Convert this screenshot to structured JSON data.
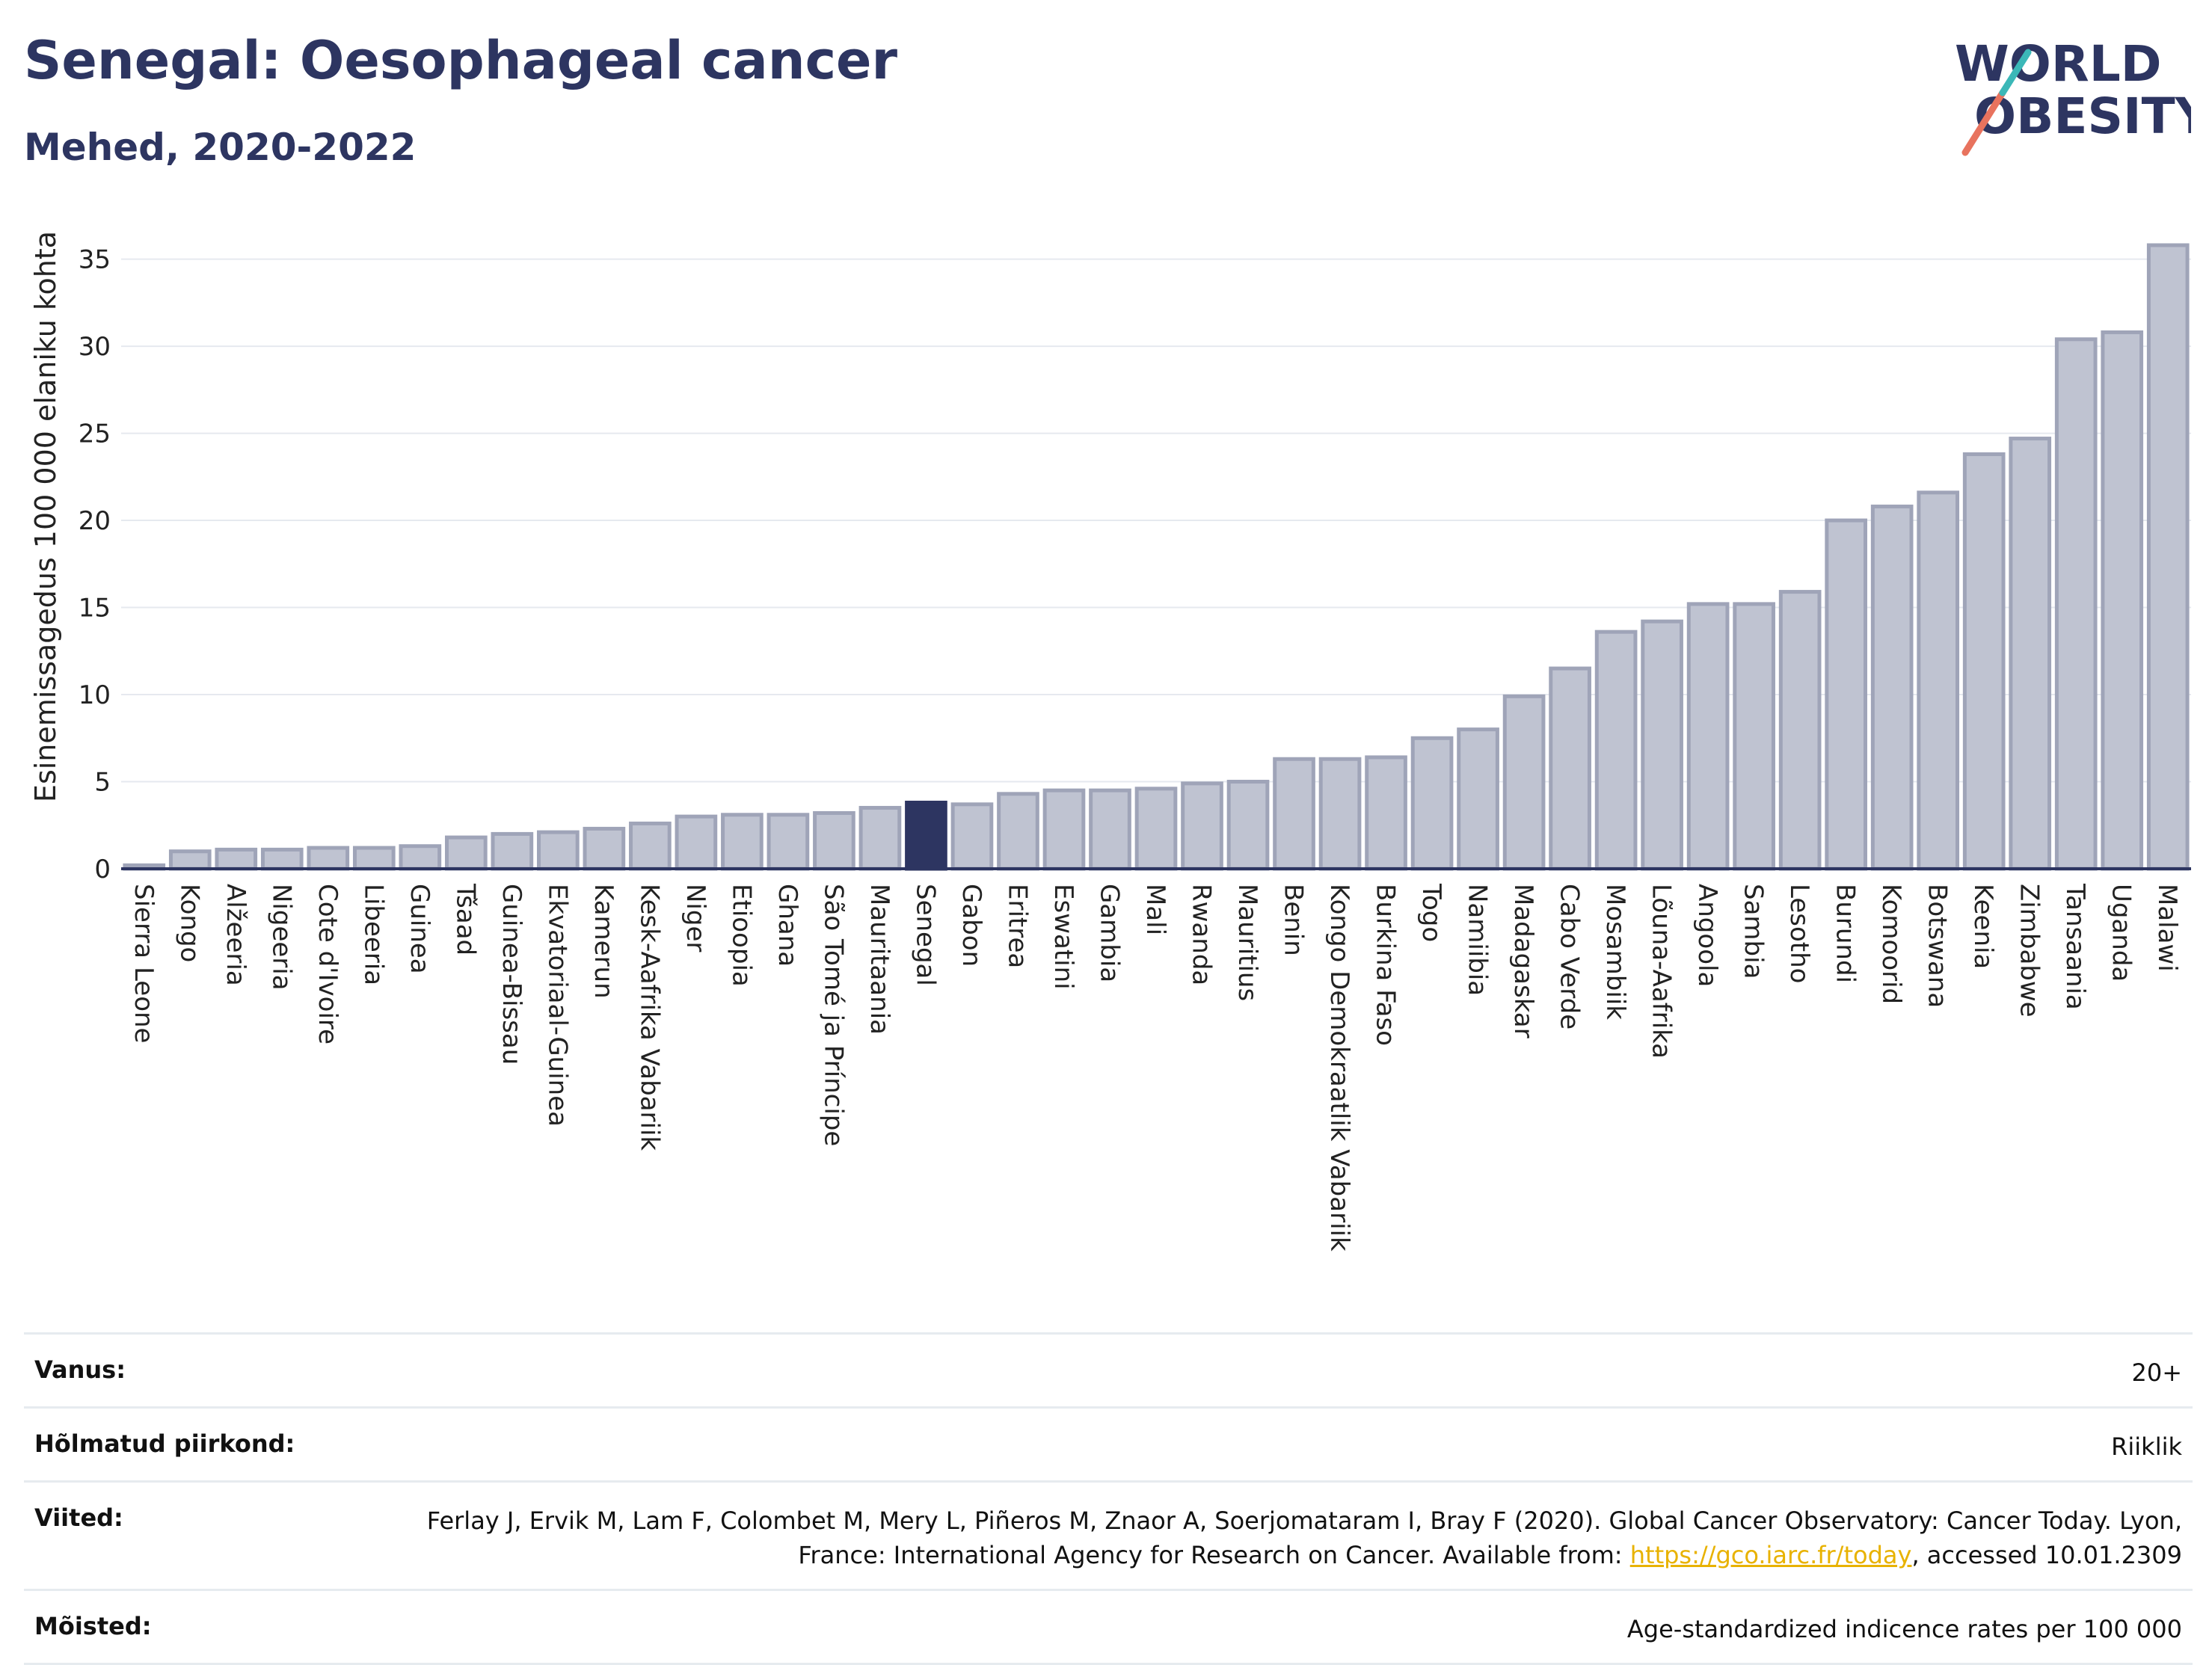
{
  "header": {
    "title": "Senegal: Oesophageal cancer",
    "subtitle": "Mehed, 2020-2022"
  },
  "logo": {
    "line1": "WORLD",
    "line2": "OBESITY",
    "colors": {
      "text": "#2d3561",
      "slash_teal": "#3bb8b8",
      "slash_red": "#e8735e"
    }
  },
  "chart_data": {
    "type": "bar",
    "title": "Senegal: Oesophageal cancer",
    "subtitle": "Mehed, 2020-2022",
    "xlabel": "",
    "ylabel": "Esinemissagedus 100 000 elaniku kohta",
    "ylim": [
      0,
      37
    ],
    "yticks": [
      0,
      5,
      10,
      15,
      20,
      25,
      30,
      35
    ],
    "grid": true,
    "highlight": "Senegal",
    "colors": {
      "bar": "#bfc3d1",
      "bar_edge": "#9fa4b8",
      "highlight": "#2d3561",
      "grid": "#e6e9ef",
      "axis": "#2d3561"
    },
    "categories": [
      "Sierra Leone",
      "Kongo",
      "Alžeeria",
      "Nigeeria",
      "Cote d'Ivoire",
      "Libeeria",
      "Guinea",
      "Tšaad",
      "Guinea-Bissau",
      "Ekvatoriaal-Guinea",
      "Kamerun",
      "Kesk-Aafrika Vabariik",
      "Niger",
      "Etioopia",
      "Ghana",
      "São Tomé ja Príncipe",
      "Mauritaania",
      "Senegal",
      "Gabon",
      "Eritrea",
      "Eswatini",
      "Gambia",
      "Mali",
      "Rwanda",
      "Mauritius",
      "Benin",
      "Kongo Demokraatlik Vabariik",
      "Burkina Faso",
      "Togo",
      "Namiibia",
      "Madagaskar",
      "Cabo Verde",
      "Mosambiik",
      "Lõuna-Aafrika",
      "Angoola",
      "Sambia",
      "Lesotho",
      "Burundi",
      "Komoorid",
      "Botswana",
      "Keenia",
      "Zimbabwe",
      "Tansaania",
      "Uganda",
      "Malawi"
    ],
    "values": [
      0.2,
      1.0,
      1.1,
      1.1,
      1.2,
      1.2,
      1.3,
      1.8,
      2.0,
      2.1,
      2.3,
      2.6,
      3.0,
      3.1,
      3.1,
      3.2,
      3.5,
      3.8,
      3.7,
      4.3,
      4.5,
      4.5,
      4.6,
      4.9,
      5.0,
      6.3,
      6.3,
      6.4,
      7.5,
      8.0,
      9.9,
      11.5,
      13.6,
      14.2,
      15.2,
      15.2,
      15.9,
      20.0,
      20.8,
      21.6,
      23.8,
      24.7,
      30.4,
      30.8,
      35.8
    ]
  },
  "meta": {
    "age_label": "Vanus:",
    "age_value": "20+",
    "region_label": "Hõlmatud piirkond:",
    "region_value": "Riiklik",
    "refs_label": "Viited:",
    "refs_text_1": "Ferlay J, Ervik M, Lam F, Colombet M, Mery L, Piñeros M, Znaor A, Soerjomataram I, Bray F (2020). Global Cancer Observatory: Cancer Today. Lyon, France: International Agency for Research on Cancer. Available from: ",
    "refs_link": "https://gco.iarc.fr/today",
    "refs_text_2": ", accessed 10.01.2309",
    "def_label": "Mõisted:",
    "def_value": "Age-standardized indicence rates per 100 000"
  }
}
